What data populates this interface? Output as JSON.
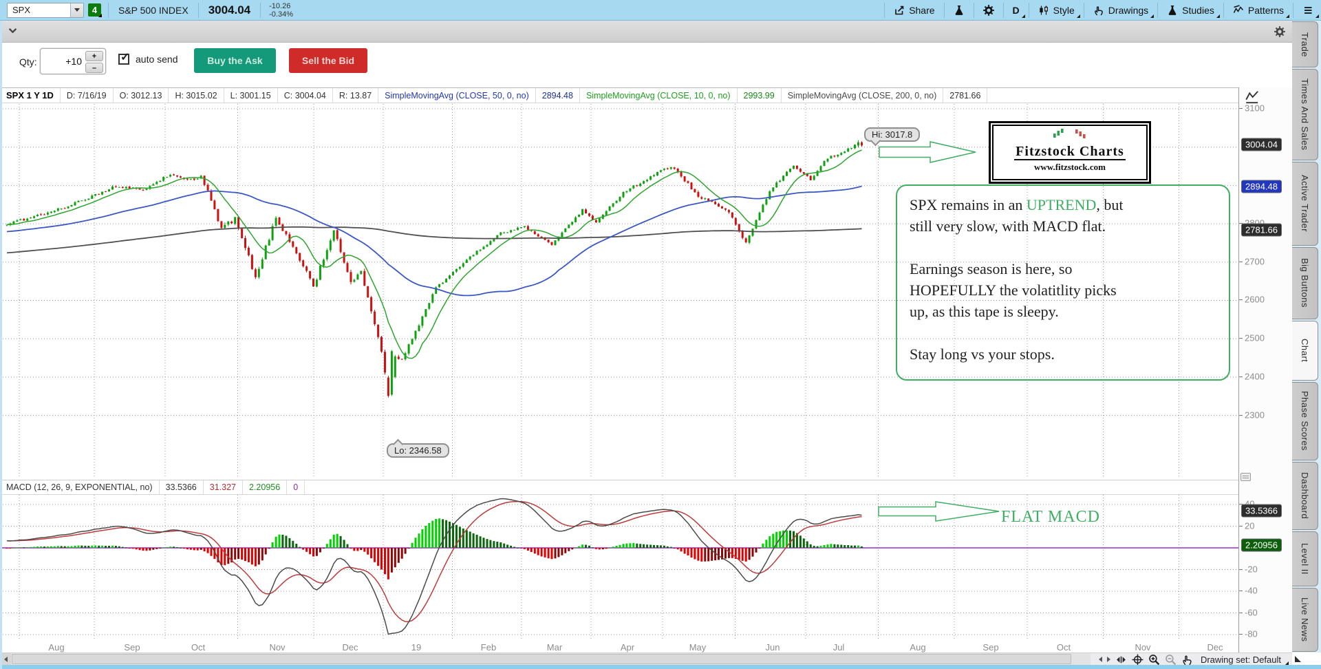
{
  "topbar": {
    "symbol": "SPX",
    "alert_badge": "4",
    "symbol_name": "S&P 500 INDEX",
    "last_price": "3004.04",
    "change": "-10.26",
    "change_pct": "-0.34%",
    "menus": [
      {
        "id": "share",
        "label": "Share",
        "icon": "share-icon",
        "menu": false
      },
      {
        "id": "quick-study",
        "label": "",
        "icon": "flask-icon",
        "menu": false
      },
      {
        "id": "settings",
        "label": "",
        "icon": "gear-icon",
        "menu": false
      },
      {
        "id": "timeframe",
        "label": "D",
        "icon": "",
        "menu": true
      },
      {
        "id": "style",
        "label": "Style",
        "icon": "candles-icon",
        "menu": true
      },
      {
        "id": "drawings",
        "label": "Drawings",
        "icon": "hand-icon",
        "menu": true
      },
      {
        "id": "studies",
        "label": "Studies",
        "icon": "flask-icon",
        "menu": true
      },
      {
        "id": "patterns",
        "label": "Patterns",
        "icon": "pattern-icon",
        "menu": true
      },
      {
        "id": "chart-menu",
        "label": "",
        "icon": "list-icon",
        "menu": true
      }
    ]
  },
  "orderbar": {
    "qty_label": "Qty:",
    "qty_value": "+10",
    "auto_send_label": "auto send",
    "auto_send_checked": true,
    "buy_label": "Buy the Ask",
    "sell_label": "Sell the Bid"
  },
  "chart_header": {
    "title": "SPX 1 Y 1D",
    "fields": [
      "D: 7/16/19",
      "O: 3012.13",
      "H: 3015.02",
      "L: 3001.15",
      "C: 3004.04",
      "R: 13.87"
    ],
    "studies": [
      {
        "label": "SimpleMovingAvg (CLOSE, 50, 0, no)",
        "value": "2894.48",
        "label_color": "#2237b8",
        "value_color": "#1b2f9b"
      },
      {
        "label": "SimpleMovingAvg (CLOSE, 10, 0, no)",
        "value": "2993.99",
        "label_color": "#1f9e1f",
        "value_color": "#188818"
      },
      {
        "label": "SimpleMovingAvg (CLOSE, 200, 0, no)",
        "value": "2781.66",
        "label_color": "#4a4a4a",
        "value_color": "#333333"
      }
    ]
  },
  "macd_header": {
    "label": "MACD (12, 26, 9, EXPONENTIAL, no)",
    "values": [
      {
        "text": "33.5366",
        "color": "#333333"
      },
      {
        "text": "31.327",
        "color": "#b23030"
      },
      {
        "text": "2.20956",
        "color": "#1e8e1e"
      },
      {
        "text": "0",
        "color": "#8d2bb5"
      }
    ]
  },
  "price_axis": {
    "tick_values": [
      3100,
      2800,
      2700,
      2600,
      2500,
      2400,
      2300
    ],
    "badges": [
      {
        "text": "3004.04",
        "value": 3004.04,
        "bg": "#2d2d2d"
      },
      {
        "text": "2894.48",
        "value": 2894.48,
        "bg": "#2336c0"
      },
      {
        "text": "2781.66",
        "value": 2781.66,
        "bg": "#2d2d2d"
      }
    ]
  },
  "macd_axis": {
    "tick_values": [
      40,
      20,
      -20,
      -40,
      -60,
      -80
    ],
    "badges": [
      {
        "text": "33.5366",
        "value": 33.5366,
        "bg": "#2d2d2d"
      },
      {
        "text": "2.20956",
        "value": 2.20956,
        "bg": "#0d5f0d"
      }
    ]
  },
  "x_axis": {
    "labels": [
      "Aug",
      "Sep",
      "Oct",
      "Nov",
      "Dec",
      "19",
      "Feb",
      "Mar",
      "Apr",
      "May",
      "Jun",
      "Jul",
      "Aug",
      "Sep",
      "Oct",
      "Nov",
      "Dec"
    ]
  },
  "annotations": {
    "hi_label": "Hi: 3017.8",
    "lo_label": "Lo: 2346.58",
    "flat_macd": "FLAT MACD",
    "accent_green": "#3fae63",
    "logo": {
      "title": "Fitzstock Charts",
      "url": "www.fitzstock.com"
    },
    "note": {
      "paragraphs": [
        [
          [
            {
              "t": "SPX remains in an "
            },
            {
              "t": "UPTREND",
              "green": true
            },
            {
              "t": ", but"
            }
          ],
          [
            {
              "t": "still very slow, with MACD flat."
            }
          ]
        ],
        [
          [
            {
              "t": "Earnings season is here, so"
            }
          ],
          [
            {
              "t": "HOPEFULLY the volatitlity picks"
            }
          ],
          [
            {
              "t": "up, as this tape is sleepy."
            }
          ]
        ],
        [
          [
            {
              "t": "Stay long vs your stops."
            }
          ]
        ]
      ]
    }
  },
  "sidebar": {
    "tabs": [
      {
        "label": "Trade",
        "active": false
      },
      {
        "label": "Times And Sales",
        "active": false
      },
      {
        "label": "Active Trader",
        "active": false
      },
      {
        "label": "Big Buttons",
        "active": false
      },
      {
        "label": "Chart",
        "active": true
      },
      {
        "label": "Phase Scores",
        "active": false
      },
      {
        "label": "Dashboard",
        "active": false
      },
      {
        "label": "Level II",
        "active": false
      },
      {
        "label": "Live News",
        "active": false
      }
    ]
  },
  "bottombar": {
    "drawing_set": "Drawing set: Default"
  },
  "chart_data": {
    "type": "candlestick",
    "symbol": "SPX",
    "timeframe": "1 Y 1D",
    "date_range": "7/2018 - 7/16/2019",
    "price_axis_range": [
      2138,
      3112
    ],
    "macd_axis_range": [
      -85,
      48
    ],
    "high": {
      "label": "Hi: 3017.8",
      "value": 3017.8
    },
    "low": {
      "label": "Lo: 2346.58",
      "value": 2346.58
    },
    "last_bar": {
      "date": "7/16/19",
      "open": 3012.13,
      "high": 3015.02,
      "low": 3001.15,
      "close": 3004.04,
      "range": 13.87
    },
    "sma_values": {
      "sma10": 2993.99,
      "sma50": 2894.48,
      "sma200": 2781.66
    },
    "macd": {
      "fast": 12,
      "slow": 26,
      "signal": 9,
      "avg_type": "EXPONENTIAL",
      "macd_value": 33.5366,
      "signal_value": 31.327,
      "hist_value": 2.20956,
      "zero": 0
    },
    "price_anchors": [
      [
        0,
        2800
      ],
      [
        8,
        2818
      ],
      [
        18,
        2846
      ],
      [
        32,
        2898
      ],
      [
        40,
        2888
      ],
      [
        48,
        2930
      ],
      [
        55,
        2912
      ],
      [
        57,
        2928
      ],
      [
        63,
        2788
      ],
      [
        67,
        2812
      ],
      [
        73,
        2662
      ],
      [
        79,
        2814
      ],
      [
        85,
        2728
      ],
      [
        90,
        2634
      ],
      [
        96,
        2788
      ],
      [
        101,
        2648
      ],
      [
        104,
        2674
      ],
      [
        110,
        2468
      ],
      [
        112,
        2352
      ],
      [
        114,
        2452
      ],
      [
        116,
        2446
      ],
      [
        126,
        2632
      ],
      [
        135,
        2706
      ],
      [
        145,
        2776
      ],
      [
        152,
        2792
      ],
      [
        160,
        2746
      ],
      [
        169,
        2836
      ],
      [
        173,
        2806
      ],
      [
        181,
        2882
      ],
      [
        193,
        2942
      ],
      [
        196,
        2946
      ],
      [
        203,
        2872
      ],
      [
        208,
        2852
      ],
      [
        212,
        2832
      ],
      [
        217,
        2750
      ],
      [
        224,
        2886
      ],
      [
        231,
        2952
      ],
      [
        236,
        2916
      ],
      [
        241,
        2972
      ],
      [
        245,
        2982
      ],
      [
        250,
        3012
      ],
      [
        251,
        3004.04
      ]
    ],
    "colors": {
      "candle_up": "#0fa00f",
      "candle_down": "#cc1111",
      "sma10": "#2ca52c",
      "sma50": "#3a57c4",
      "sma200": "#4f4f4f",
      "hist_pos_bright": "#00d200",
      "hist_pos_dark": "#0a660a",
      "hist_neg_bright": "#e00000",
      "hist_neg_dark": "#8c0606",
      "macd_line": "#4a4a4a",
      "signal_line": "#bf3a3a",
      "zero_line": "#a64ad2",
      "grid": "#9a9a9a"
    }
  }
}
